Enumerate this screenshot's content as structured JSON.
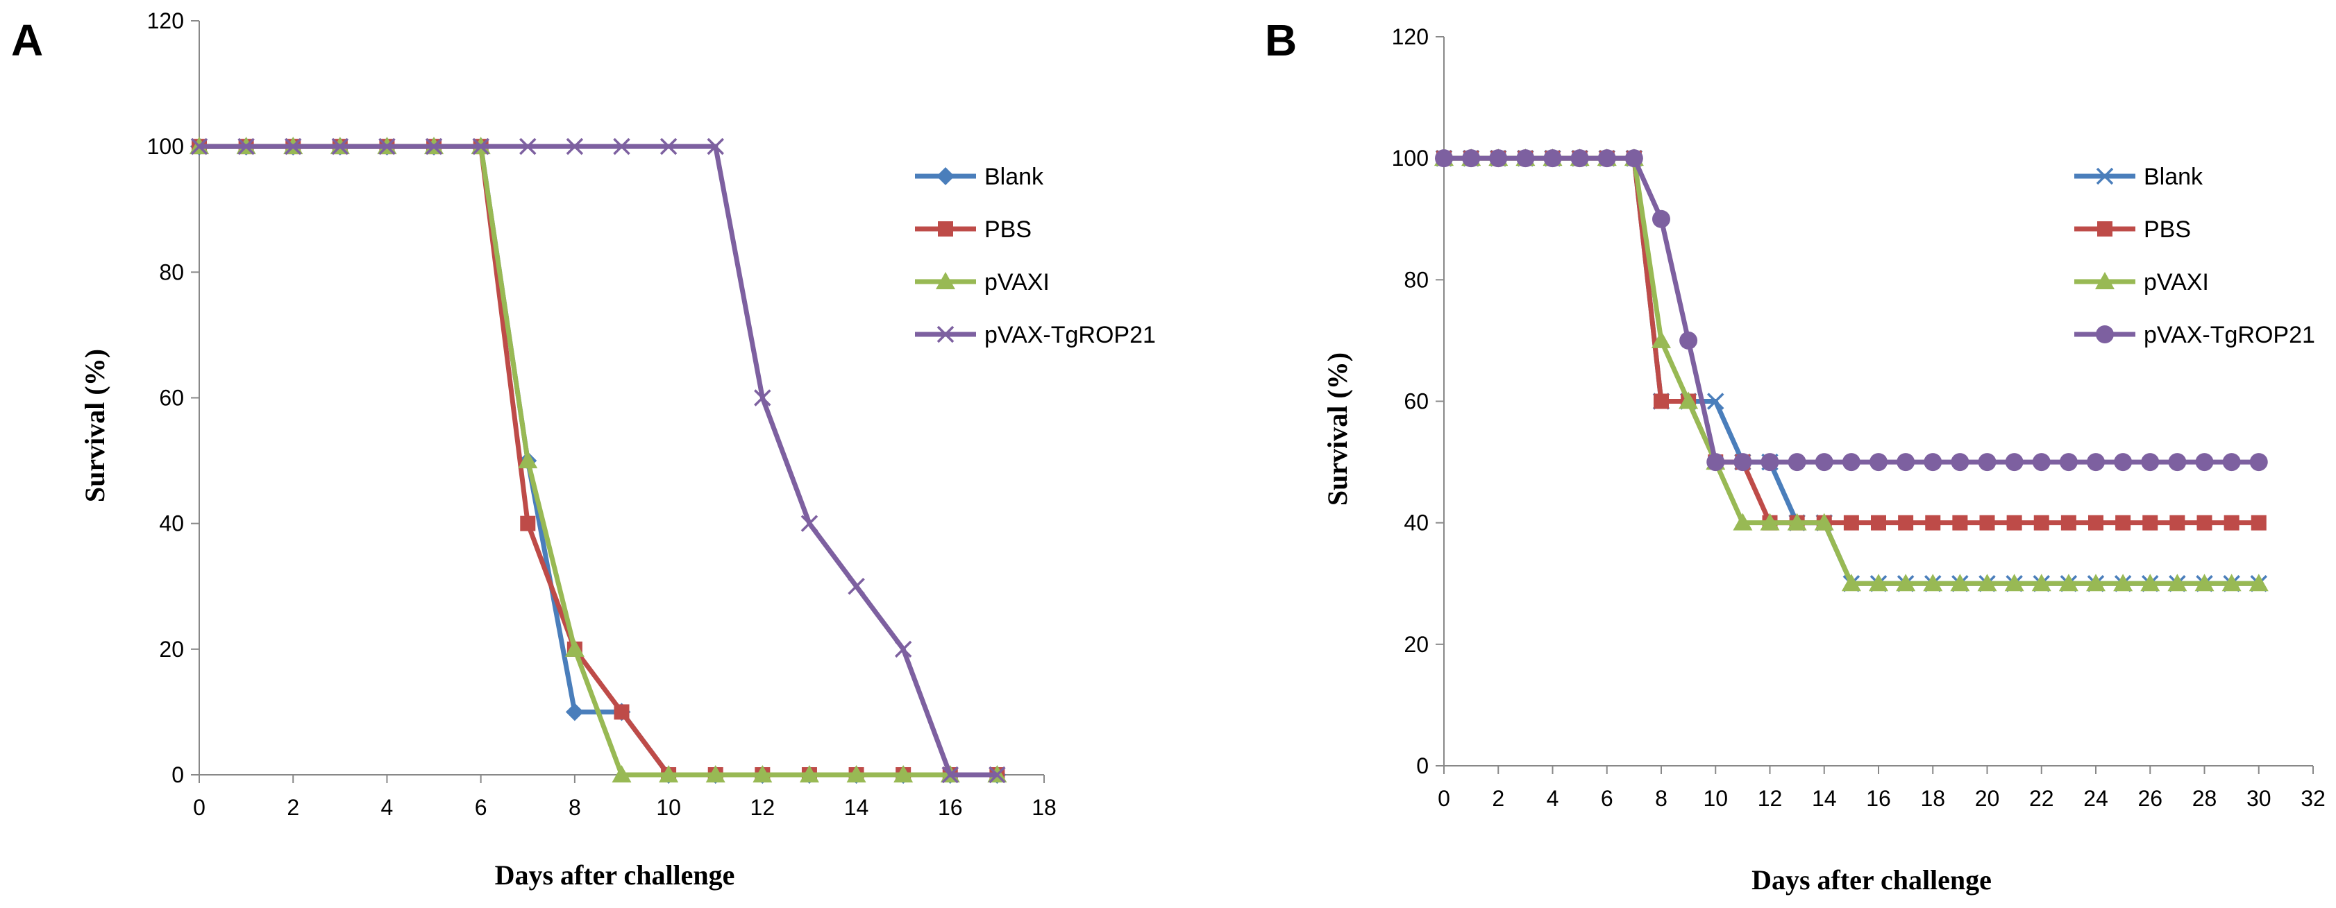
{
  "figure": {
    "panels": [
      "A",
      "B"
    ]
  },
  "chart_data": [
    {
      "type": "line",
      "panel_label": "A",
      "title": "",
      "xlabel": "Days  after challenge",
      "ylabel": "Survival (%)",
      "xlim": [
        0,
        18
      ],
      "ylim": [
        0,
        120
      ],
      "xticks": [
        0,
        2,
        4,
        6,
        8,
        10,
        12,
        14,
        16,
        18
      ],
      "yticks": [
        0,
        20,
        40,
        60,
        80,
        100,
        120
      ],
      "grid": false,
      "legend_position": "right",
      "series": [
        {
          "name": "Blank",
          "color": "#4A7EBB",
          "marker": "diamond",
          "x": [
            0,
            1,
            2,
            3,
            4,
            5,
            6,
            7,
            8,
            9,
            10,
            11,
            12,
            13,
            14,
            15,
            16,
            17
          ],
          "values": [
            100,
            100,
            100,
            100,
            100,
            100,
            100,
            50,
            10,
            10,
            0,
            0,
            0,
            0,
            0,
            0,
            0,
            0
          ]
        },
        {
          "name": "PBS",
          "color": "#BE4B48",
          "marker": "square",
          "x": [
            0,
            1,
            2,
            3,
            4,
            5,
            6,
            7,
            8,
            9,
            10,
            11,
            12,
            13,
            14,
            15,
            16,
            17
          ],
          "values": [
            100,
            100,
            100,
            100,
            100,
            100,
            100,
            40,
            20,
            10,
            0,
            0,
            0,
            0,
            0,
            0,
            0,
            0
          ]
        },
        {
          "name": "pVAXI",
          "color": "#98B954",
          "marker": "triangle",
          "x": [
            0,
            1,
            2,
            3,
            4,
            5,
            6,
            7,
            8,
            9,
            10,
            11,
            12,
            13,
            14,
            15,
            16,
            17
          ],
          "values": [
            100,
            100,
            100,
            100,
            100,
            100,
            100,
            50,
            20,
            0,
            0,
            0,
            0,
            0,
            0,
            0,
            0,
            0
          ]
        },
        {
          "name": "pVAX-TgROP21",
          "color": "#7D60A0",
          "marker": "x",
          "x": [
            0,
            1,
            2,
            3,
            4,
            5,
            6,
            7,
            8,
            9,
            10,
            11,
            12,
            13,
            14,
            15,
            16,
            17
          ],
          "values": [
            100,
            100,
            100,
            100,
            100,
            100,
            100,
            100,
            100,
            100,
            100,
            100,
            60,
            40,
            30,
            20,
            0,
            0
          ]
        }
      ]
    },
    {
      "type": "line",
      "panel_label": "B",
      "title": "",
      "xlabel": "Days  after challenge",
      "ylabel": "Survival (%)",
      "xlim": [
        0,
        32
      ],
      "ylim": [
        0,
        120
      ],
      "xticks": [
        0,
        2,
        4,
        6,
        8,
        10,
        12,
        14,
        16,
        18,
        20,
        22,
        24,
        26,
        28,
        30,
        32
      ],
      "yticks": [
        0,
        20,
        40,
        60,
        80,
        100,
        120
      ],
      "grid": false,
      "legend_position": "right",
      "series": [
        {
          "name": "Blank",
          "color": "#4A7EBB",
          "marker": "x",
          "x": [
            0,
            1,
            2,
            3,
            4,
            5,
            6,
            7,
            8,
            9,
            10,
            11,
            12,
            13,
            14,
            15,
            16,
            17,
            18,
            19,
            20,
            21,
            22,
            23,
            24,
            25,
            26,
            27,
            28,
            29,
            30
          ],
          "values": [
            100,
            100,
            100,
            100,
            100,
            100,
            100,
            100,
            60,
            60,
            60,
            50,
            50,
            40,
            40,
            30,
            30,
            30,
            30,
            30,
            30,
            30,
            30,
            30,
            30,
            30,
            30,
            30,
            30,
            30,
            30
          ]
        },
        {
          "name": "PBS",
          "color": "#BE4B48",
          "marker": "square",
          "x": [
            0,
            1,
            2,
            3,
            4,
            5,
            6,
            7,
            8,
            9,
            10,
            11,
            12,
            13,
            14,
            15,
            16,
            17,
            18,
            19,
            20,
            21,
            22,
            23,
            24,
            25,
            26,
            27,
            28,
            29,
            30
          ],
          "values": [
            100,
            100,
            100,
            100,
            100,
            100,
            100,
            100,
            60,
            60,
            50,
            50,
            40,
            40,
            40,
            40,
            40,
            40,
            40,
            40,
            40,
            40,
            40,
            40,
            40,
            40,
            40,
            40,
            40,
            40,
            40
          ]
        },
        {
          "name": "pVAXI",
          "color": "#98B954",
          "marker": "triangle",
          "x": [
            0,
            1,
            2,
            3,
            4,
            5,
            6,
            7,
            8,
            9,
            10,
            11,
            12,
            13,
            14,
            15,
            16,
            17,
            18,
            19,
            20,
            21,
            22,
            23,
            24,
            25,
            26,
            27,
            28,
            29,
            30
          ],
          "values": [
            100,
            100,
            100,
            100,
            100,
            100,
            100,
            100,
            70,
            60,
            50,
            40,
            40,
            40,
            40,
            30,
            30,
            30,
            30,
            30,
            30,
            30,
            30,
            30,
            30,
            30,
            30,
            30,
            30,
            30,
            30
          ]
        },
        {
          "name": "pVAX-TgROP21",
          "color": "#7D60A0",
          "marker": "circle",
          "x": [
            0,
            1,
            2,
            3,
            4,
            5,
            6,
            7,
            8,
            9,
            10,
            11,
            12,
            13,
            14,
            15,
            16,
            17,
            18,
            19,
            20,
            21,
            22,
            23,
            24,
            25,
            26,
            27,
            28,
            29,
            30
          ],
          "values": [
            100,
            100,
            100,
            100,
            100,
            100,
            100,
            100,
            90,
            70,
            50,
            50,
            50,
            50,
            50,
            50,
            50,
            50,
            50,
            50,
            50,
            50,
            50,
            50,
            50,
            50,
            50,
            50,
            50,
            50,
            50
          ]
        }
      ]
    }
  ]
}
